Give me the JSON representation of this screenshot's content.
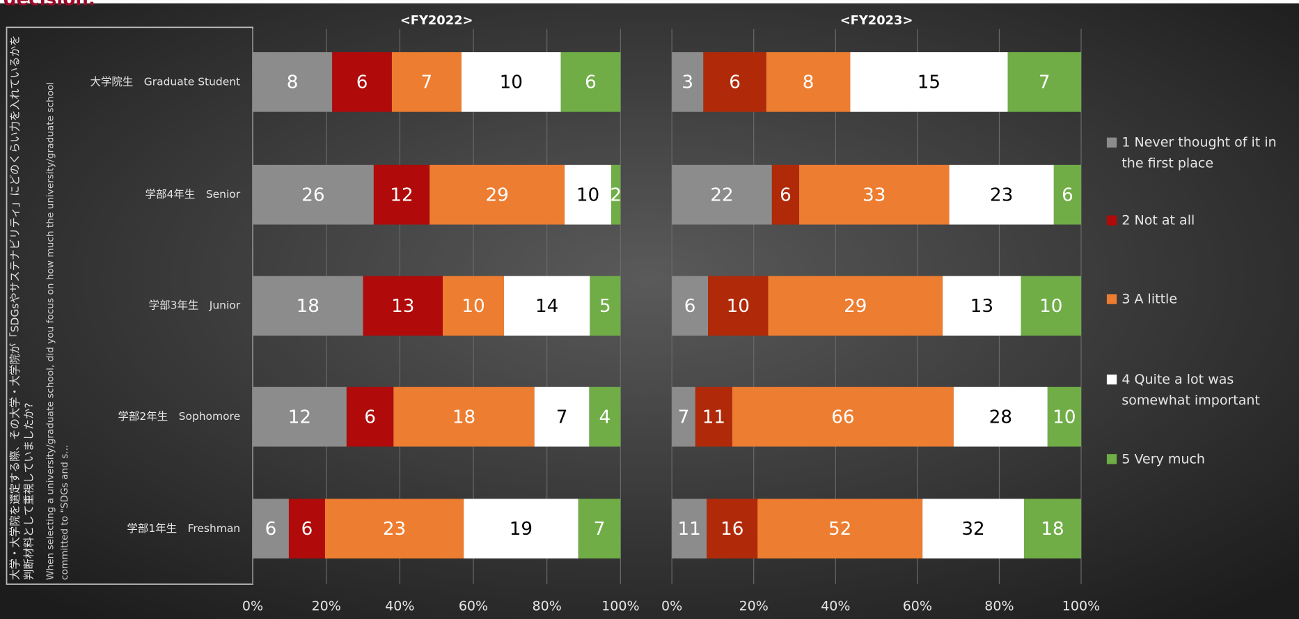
{
  "page_title": "decision.",
  "axis_title_ja": "大学・大学院を選定する際、その大学・大学院が「SDGsやサステナビリティ」にどのくらい力を入れているかを判断材料として重視していましたか?",
  "axis_title_en": "When selecting a university/graduate school, did you focus on how much the university/graduate school committed to \"SDGs and s...",
  "chart_data": [
    {
      "type": "bar",
      "orientation": "horizontal",
      "stacking": "percent",
      "title": "<FY2022>",
      "categories": [
        "大学院生　Graduate Student",
        "学部4年生　Senior",
        "学部3年生　Junior",
        "学部2年生　Sophomore",
        "学部1年生　Freshman"
      ],
      "series": [
        {
          "name": "1  Never thought of it in the first place",
          "color": "#8c8c8c",
          "values": [
            8,
            26,
            18,
            12,
            6
          ]
        },
        {
          "name": "2 Not at all",
          "color": "#b00a0a",
          "values": [
            6,
            12,
            13,
            6,
            6
          ]
        },
        {
          "name": "3  A little",
          "color": "#ed7d31",
          "values": [
            7,
            29,
            10,
            18,
            23
          ]
        },
        {
          "name": "4 Quite a lot was somewhat important",
          "color": "#ffffff",
          "values": [
            10,
            10,
            14,
            7,
            19
          ]
        },
        {
          "name": "5 Very much",
          "color": "#70ad47",
          "values": [
            6,
            2,
            5,
            4,
            7
          ]
        }
      ],
      "xlim": [
        0,
        100
      ],
      "xticks": [
        {
          "value": 0,
          "label": "0%"
        },
        {
          "value": 20,
          "label": "20%"
        },
        {
          "value": 40,
          "label": "40%"
        },
        {
          "value": 60,
          "label": "60%"
        },
        {
          "value": 80,
          "label": "80%"
        },
        {
          "value": 100,
          "label": "100%"
        }
      ],
      "grid": true,
      "legend": "right"
    },
    {
      "type": "bar",
      "orientation": "horizontal",
      "stacking": "percent",
      "title": "<FY2023>",
      "series": [
        {
          "color": "#8c8c8c",
          "values": [
            3,
            22,
            6,
            7,
            11
          ]
        },
        {
          "color": "#b02a0a",
          "values": [
            6,
            6,
            10,
            11,
            16
          ]
        },
        {
          "color": "#ed7d31",
          "values": [
            8,
            33,
            29,
            66,
            52
          ]
        },
        {
          "color": "#ffffff",
          "values": [
            15,
            23,
            13,
            28,
            32
          ]
        },
        {
          "color": "#70ad47",
          "values": [
            7,
            6,
            10,
            10,
            18
          ]
        }
      ],
      "xlim": [
        0,
        100
      ],
      "xticks": [
        {
          "value": 0,
          "label": "0%"
        },
        {
          "value": 20,
          "label": "20%"
        },
        {
          "value": 40,
          "label": "40%"
        },
        {
          "value": 60,
          "label": "60%"
        },
        {
          "value": 80,
          "label": "80%"
        },
        {
          "value": 100,
          "label": "100%"
        }
      ],
      "grid": true
    }
  ]
}
